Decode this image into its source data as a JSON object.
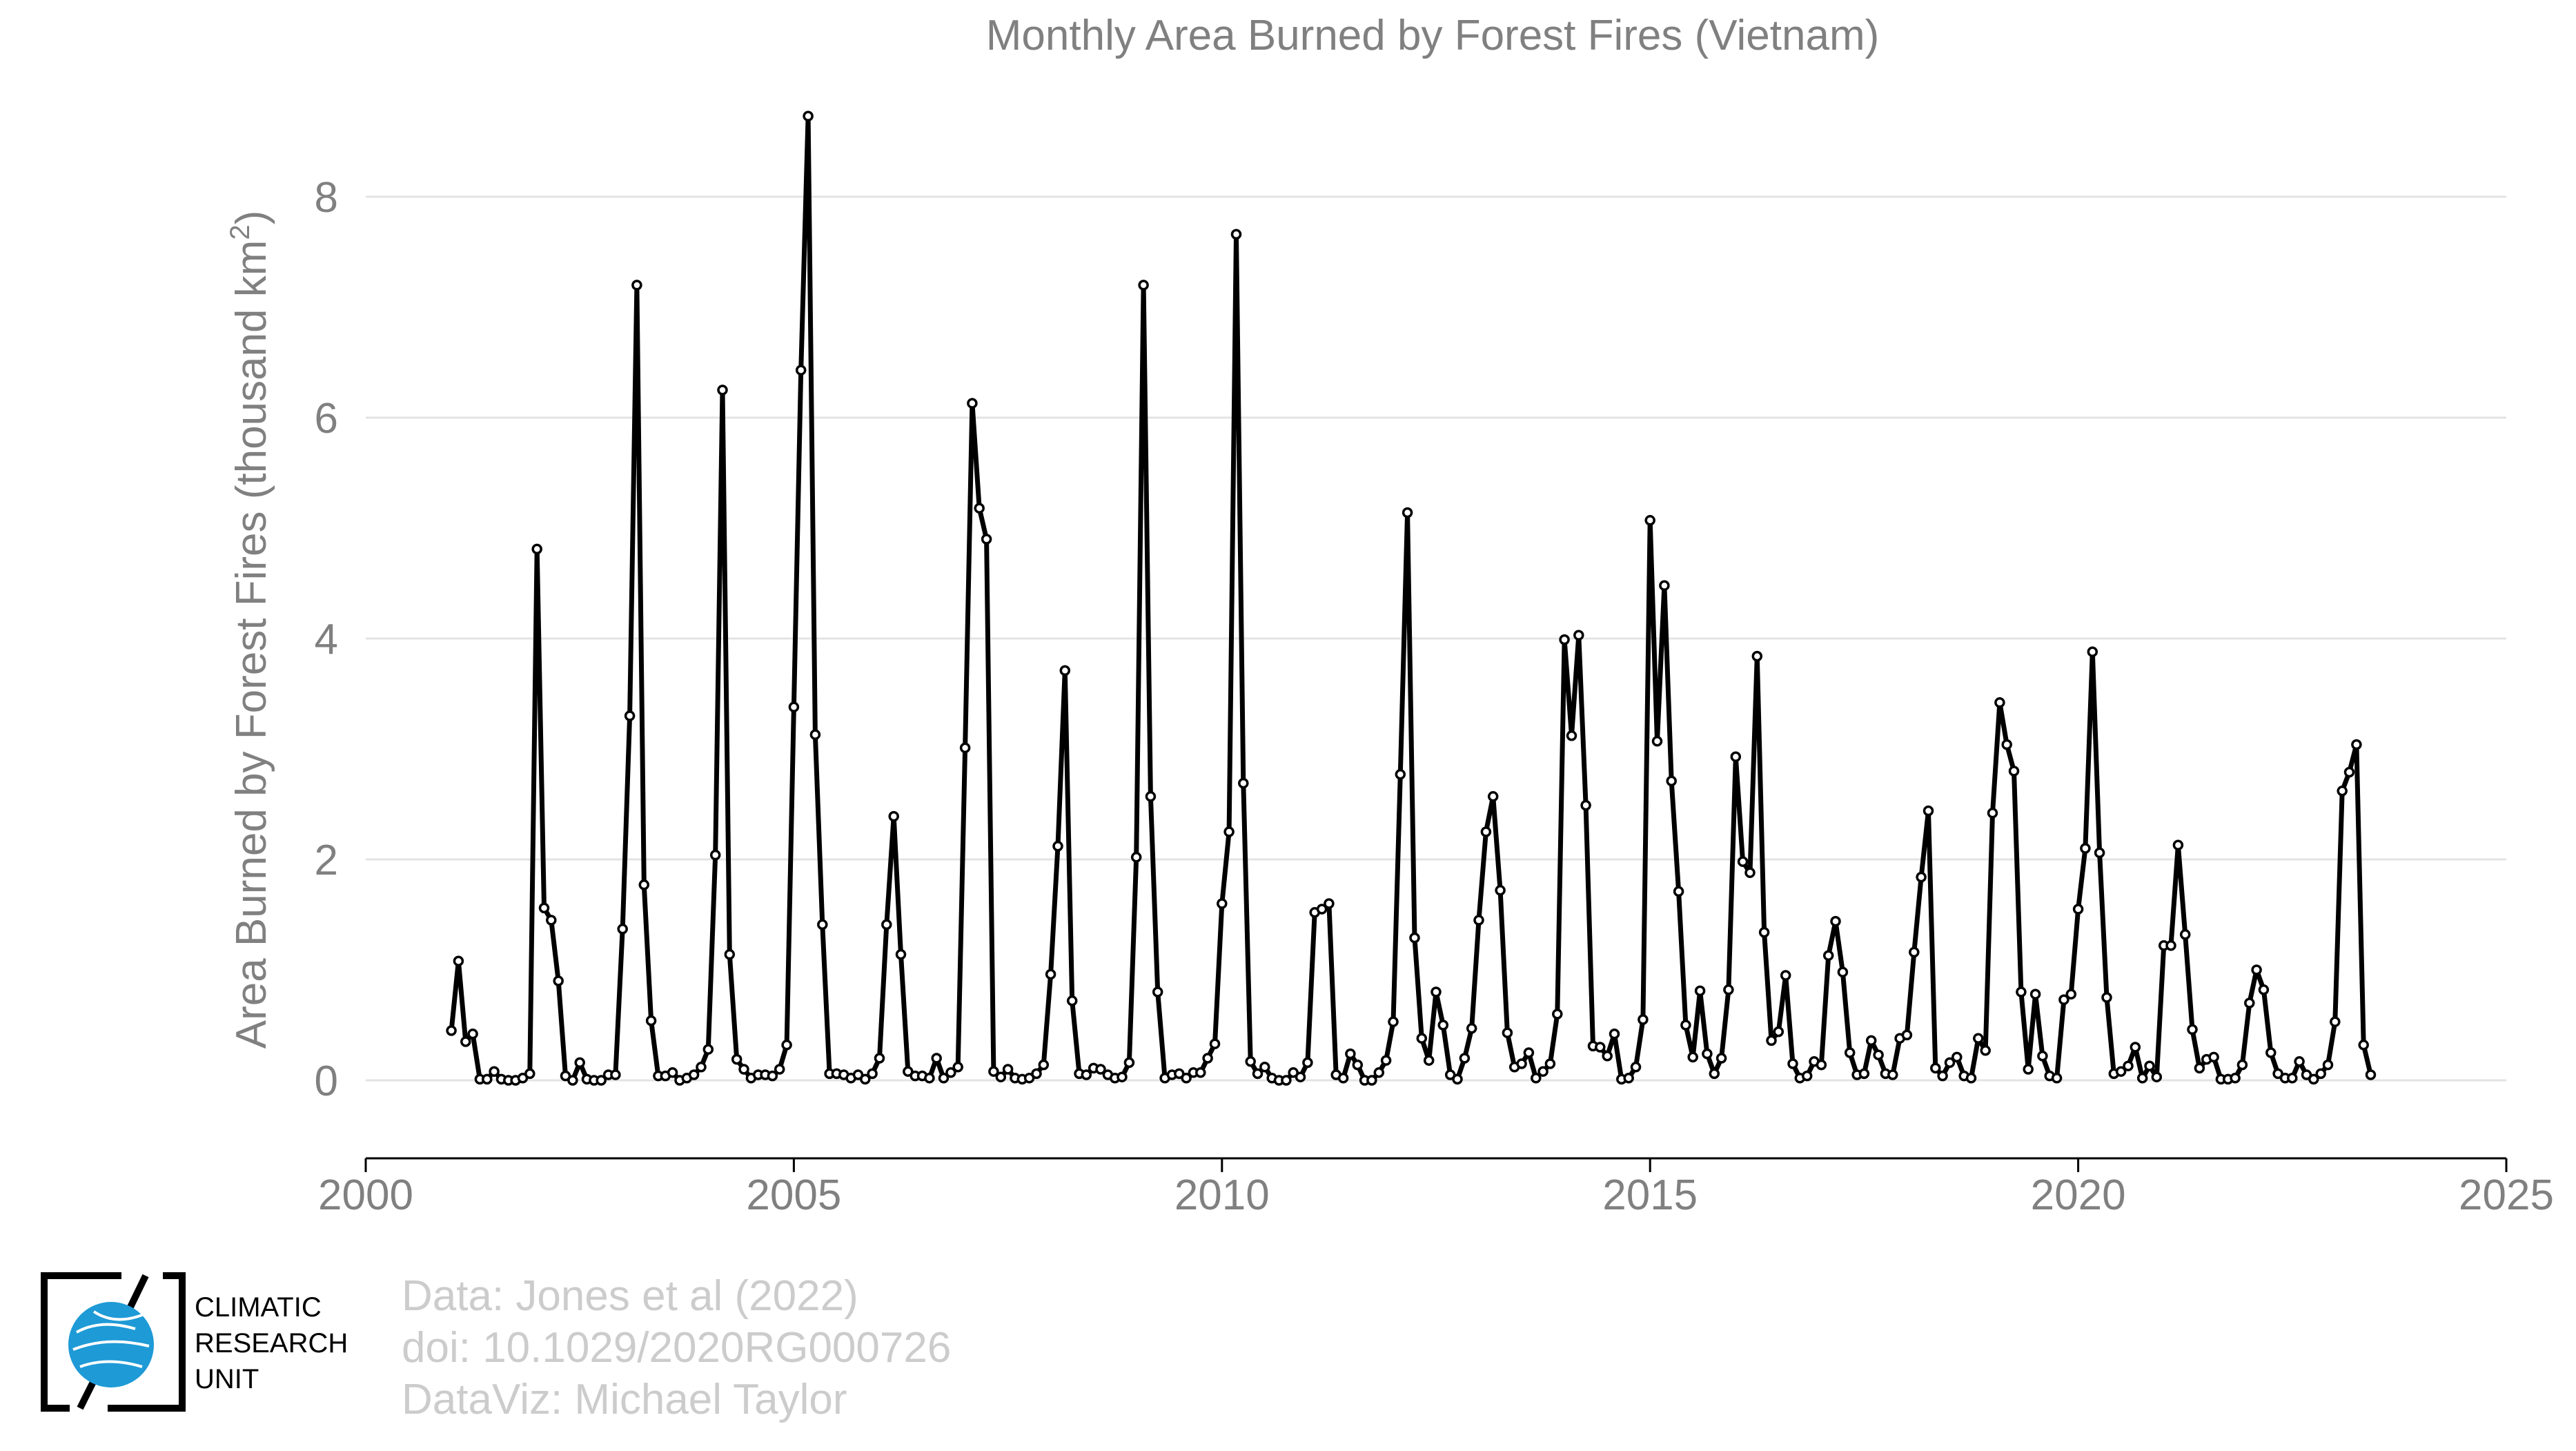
{
  "chart_data": {
    "type": "line",
    "title": "Monthly Area Burned by Forest Fires (Vietnam)",
    "xlabel": "",
    "ylabel": "Area Burned by Forest Fires (thousand km²)",
    "ylabel_main": "Area Burned by Forest Fires (thousand km",
    "ylabel_sup": "2",
    "ylabel_close": ")",
    "xlim": [
      2000,
      2025
    ],
    "ylim": [
      -0.7,
      8.9
    ],
    "x_ticks": [
      2000,
      2005,
      2010,
      2015,
      2020,
      2025
    ],
    "y_ticks": [
      0,
      2,
      4,
      6,
      8
    ],
    "grid": "horizontal",
    "line_color": "#000000",
    "marker": "open-circle",
    "series": [
      {
        "start_year": 2001,
        "start_month": 1,
        "values": [
          0.45,
          1.08,
          0.35,
          0.42,
          0.01,
          0.01,
          0.08,
          0.01,
          0.0,
          0.0,
          0.02,
          0.06,
          4.81,
          1.56,
          1.45,
          0.9,
          0.04,
          0.0,
          0.16,
          0.01,
          0.0,
          0.0,
          0.05,
          0.05,
          1.37,
          3.3,
          7.2,
          1.77,
          0.54,
          0.04,
          0.04,
          0.07,
          0.0,
          0.02,
          0.05,
          0.12,
          0.28,
          2.04,
          6.25,
          1.14,
          0.19,
          0.1,
          0.02,
          0.05,
          0.05,
          0.04,
          0.1,
          0.32,
          3.38,
          6.43,
          8.73,
          3.13,
          1.41,
          0.06,
          0.06,
          0.05,
          0.02,
          0.05,
          0.01,
          0.06,
          0.2,
          1.41,
          2.39,
          1.14,
          0.08,
          0.04,
          0.04,
          0.02,
          0.2,
          0.02,
          0.07,
          0.12,
          3.01,
          6.13,
          5.18,
          4.9,
          0.08,
          0.03,
          0.1,
          0.02,
          0.01,
          0.02,
          0.06,
          0.14,
          0.96,
          2.12,
          3.71,
          0.72,
          0.06,
          0.05,
          0.11,
          0.1,
          0.05,
          0.02,
          0.03,
          0.16,
          2.02,
          7.2,
          2.57,
          0.8,
          0.02,
          0.05,
          0.06,
          0.02,
          0.07,
          0.07,
          0.2,
          0.33,
          1.6,
          2.25,
          7.66,
          2.69,
          0.17,
          0.06,
          0.12,
          0.02,
          0.0,
          0.0,
          0.07,
          0.03,
          0.16,
          1.52,
          1.55,
          1.6,
          0.05,
          0.02,
          0.24,
          0.14,
          0.0,
          0.0,
          0.07,
          0.18,
          0.53,
          2.77,
          5.14,
          1.29,
          0.38,
          0.18,
          0.8,
          0.5,
          0.05,
          0.01,
          0.2,
          0.47,
          1.45,
          2.25,
          2.57,
          1.72,
          0.43,
          0.12,
          0.15,
          0.25,
          0.02,
          0.08,
          0.15,
          0.6,
          3.99,
          3.12,
          4.03,
          2.49,
          0.31,
          0.3,
          0.22,
          0.42,
          0.01,
          0.02,
          0.12,
          0.55,
          5.07,
          3.07,
          4.48,
          2.71,
          1.71,
          0.5,
          0.21,
          0.81,
          0.24,
          0.06,
          0.2,
          0.82,
          2.93,
          1.98,
          1.88,
          3.84,
          1.34,
          0.36,
          0.44,
          0.95,
          0.15,
          0.02,
          0.04,
          0.17,
          0.14,
          1.13,
          1.44,
          0.98,
          0.25,
          0.05,
          0.06,
          0.36,
          0.23,
          0.06,
          0.05,
          0.38,
          0.41,
          1.16,
          1.84,
          2.44,
          0.11,
          0.04,
          0.16,
          0.21,
          0.04,
          0.02,
          0.38,
          0.27,
          2.42,
          3.42,
          3.04,
          2.8,
          0.8,
          0.1,
          0.78,
          0.22,
          0.04,
          0.02,
          0.73,
          0.78,
          1.55,
          2.1,
          3.88,
          2.06,
          0.75,
          0.06,
          0.08,
          0.13,
          0.3,
          0.02,
          0.13,
          0.03,
          1.22,
          1.22,
          2.13,
          1.32,
          0.46,
          0.11,
          0.19,
          0.21,
          0.01,
          0.01,
          0.02,
          0.14,
          0.7,
          1.0,
          0.82,
          0.25,
          0.06,
          0.02,
          0.02,
          0.17,
          0.05,
          0.01,
          0.06,
          0.14,
          0.53,
          2.62,
          2.79,
          3.04,
          0.32,
          0.05
        ]
      }
    ]
  },
  "logo": {
    "org_lines": [
      "CLIMATIC",
      "RESEARCH",
      "UNIT"
    ],
    "globe_color": "#1e9ad6"
  },
  "credits": {
    "line1": "Data: Jones et al (2022)",
    "line2": "doi: 10.1029/2020RG000726",
    "line3": "DataViz: Michael Taylor"
  }
}
